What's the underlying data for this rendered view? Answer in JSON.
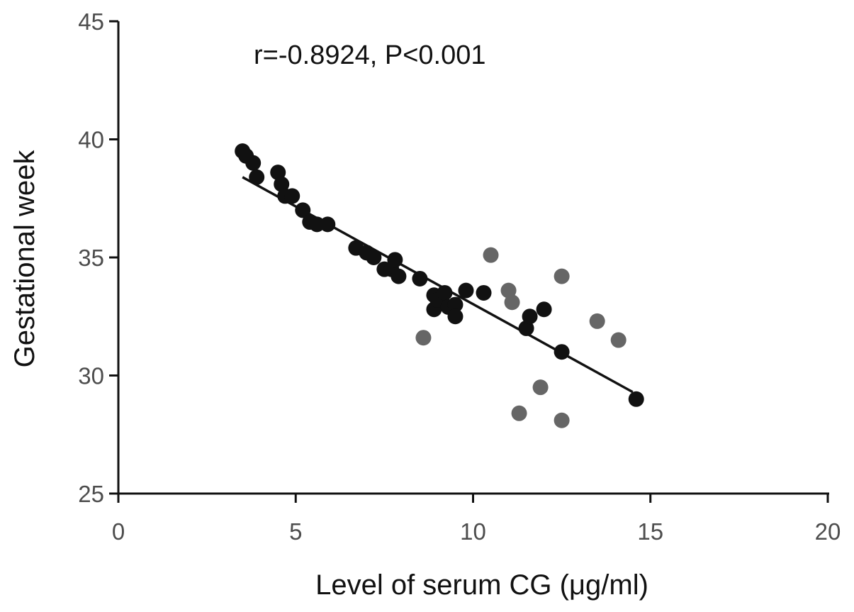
{
  "chart_data": {
    "type": "scatter",
    "title": "",
    "annotation": "r=-0.8924, P<0.001",
    "xlabel": "Level of serum CG  (μg/ml)",
    "ylabel": "Gestational week",
    "xlim": [
      0,
      20
    ],
    "ylim": [
      25,
      45
    ],
    "xticks": [
      "0",
      "5",
      "10",
      "15",
      "20"
    ],
    "yticks": [
      "25",
      "30",
      "35",
      "40",
      "45"
    ],
    "grid": false,
    "legend": "none",
    "series": [
      {
        "color": "#111111",
        "points": [
          [
            3.5,
            39.5
          ],
          [
            3.6,
            39.3
          ],
          [
            3.8,
            39.0
          ],
          [
            3.9,
            38.4
          ],
          [
            4.5,
            38.6
          ],
          [
            4.6,
            38.1
          ],
          [
            4.7,
            37.6
          ],
          [
            4.9,
            37.6
          ],
          [
            5.2,
            37.0
          ],
          [
            5.4,
            36.5
          ],
          [
            5.6,
            36.4
          ],
          [
            5.9,
            36.4
          ],
          [
            6.7,
            35.4
          ],
          [
            7.0,
            35.2
          ],
          [
            7.2,
            35.0
          ],
          [
            7.5,
            34.5
          ],
          [
            7.7,
            34.5
          ],
          [
            7.8,
            34.9
          ],
          [
            7.9,
            34.2
          ],
          [
            8.5,
            34.1
          ],
          [
            8.9,
            33.4
          ],
          [
            8.9,
            32.8
          ],
          [
            9.0,
            33.2
          ],
          [
            9.2,
            33.5
          ],
          [
            9.3,
            32.9
          ],
          [
            9.5,
            33.0
          ],
          [
            9.5,
            32.5
          ],
          [
            9.8,
            33.6
          ],
          [
            10.3,
            33.5
          ],
          [
            11.5,
            32.0
          ],
          [
            11.6,
            32.5
          ],
          [
            12.0,
            32.8
          ],
          [
            12.5,
            31.0
          ],
          [
            14.6,
            29.0
          ]
        ]
      },
      {
        "color": "#666666",
        "points": [
          [
            8.6,
            31.6
          ],
          [
            10.5,
            35.1
          ],
          [
            11.0,
            33.6
          ],
          [
            11.1,
            33.1
          ],
          [
            11.3,
            28.4
          ],
          [
            11.9,
            29.5
          ],
          [
            12.5,
            34.2
          ],
          [
            12.5,
            28.1
          ],
          [
            13.5,
            32.3
          ],
          [
            14.1,
            31.5
          ]
        ]
      }
    ],
    "fit_line": {
      "x": [
        3.5,
        14.5
      ],
      "y": [
        38.4,
        29.3
      ],
      "color": "#111111"
    }
  }
}
